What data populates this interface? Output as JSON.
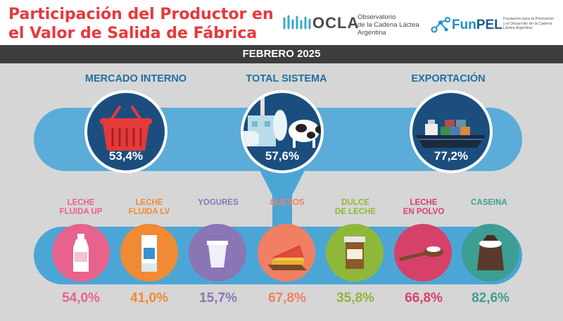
{
  "header": {
    "title_line1": "Participación del Productor en",
    "title_line2": "el Valor de Salida de Fábrica"
  },
  "ocla": {
    "name": "OCLA",
    "sub1": "Observatorio",
    "sub2": "de la Cadena Láctea",
    "sub3": "Argentina"
  },
  "funpel": {
    "name_a": "Fun",
    "name_b": "PEL",
    "sub1": "Fundación para la Promoción",
    "sub2": "y el Desarrollo de la Cadena",
    "sub3": "Láctea Argentina"
  },
  "date": "FEBRERO 2025",
  "sections": {
    "internal": {
      "label": "MERCADO INTERNO",
      "value": "53,4%",
      "icon": "basket-icon"
    },
    "total": {
      "label": "TOTAL SISTEMA",
      "value": "57,6%",
      "icon": "factory-cow-icon"
    },
    "export": {
      "label": "EXPORTACIÓN",
      "value": "77,2%",
      "icon": "cargo-ship-icon"
    }
  },
  "products": [
    {
      "label_1": "LECHE",
      "label_2": "FLUIDA UP",
      "value": "54,0%",
      "color": "#e8638c",
      "icon": "milk-bottle-icon"
    },
    {
      "label_1": "LECHE",
      "label_2": "FLUIDA LV",
      "value": "41,0%",
      "color": "#f08a35",
      "icon": "milk-carton-icon"
    },
    {
      "label_1": "",
      "label_2": "YOGURES",
      "value": "15,7%",
      "color": "#8a76b5",
      "icon": "yogurt-cup-icon"
    },
    {
      "label_1": "",
      "label_2": "QUESOS",
      "value": "67,8%",
      "color": "#f07f63",
      "icon": "cheese-icon"
    },
    {
      "label_1": "DULCE",
      "label_2": "DE LECHE",
      "value": "35,8%",
      "color": "#8fb83a",
      "icon": "dulce-jar-icon"
    },
    {
      "label_1": "LECHE",
      "label_2": "EN POLVO",
      "value": "66,8%",
      "color": "#d6416a",
      "icon": "powder-spoon-icon"
    },
    {
      "label_1": "",
      "label_2": "CASEINA",
      "value": "82,6%",
      "color": "#3d9e94",
      "icon": "casein-sack-icon"
    }
  ]
}
